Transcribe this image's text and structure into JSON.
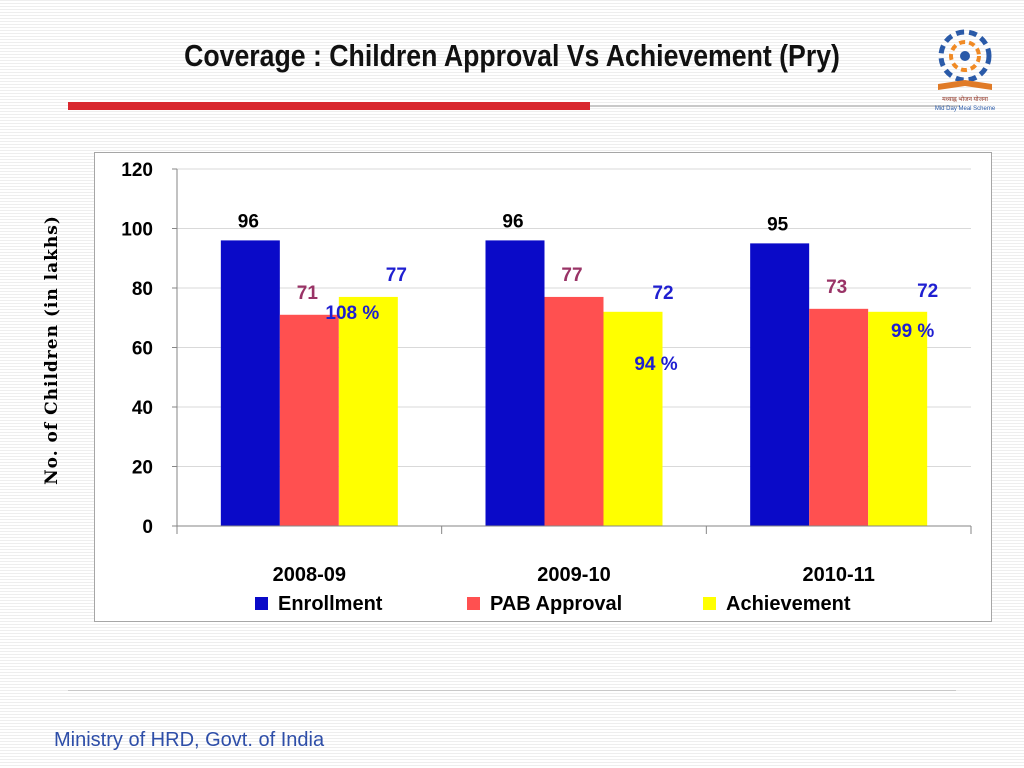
{
  "slide": {
    "title": "Coverage : Children Approval Vs Achievement (Pry)",
    "footer": "Ministry of HRD, Govt. of India"
  },
  "colors": {
    "enrollment": "#0a0ac8",
    "pab_approval": "#ff5050",
    "achievement": "#ffff00",
    "title_rule": "#d9282f",
    "pab_label": "#993366",
    "achievement_label": "#1f1fd1"
  },
  "logo": {
    "icon": "mid-day-meal-scheme-logo",
    "text_hindi": "मध्याह्न भोजन योजना",
    "text_english": "Mid Day Meal Scheme"
  },
  "chart_data": {
    "type": "bar",
    "categories": [
      "2008-09",
      "2009-10",
      "2010-11"
    ],
    "series": [
      {
        "name": "Enrollment",
        "values": [
          96,
          96,
          95
        ]
      },
      {
        "name": "PAB Approval",
        "values": [
          71,
          77,
          73
        ]
      },
      {
        "name": "Achievement",
        "values": [
          77,
          72,
          72
        ]
      }
    ],
    "annotations": [
      "108 %",
      "94 %",
      "99 %"
    ],
    "title": "",
    "xlabel": "",
    "ylabel": "No. of Children (in lakhs)",
    "ylim": [
      0,
      120
    ],
    "yticks": [
      0,
      20,
      40,
      60,
      80,
      100,
      120
    ],
    "grid": true,
    "legend_position": "bottom"
  }
}
